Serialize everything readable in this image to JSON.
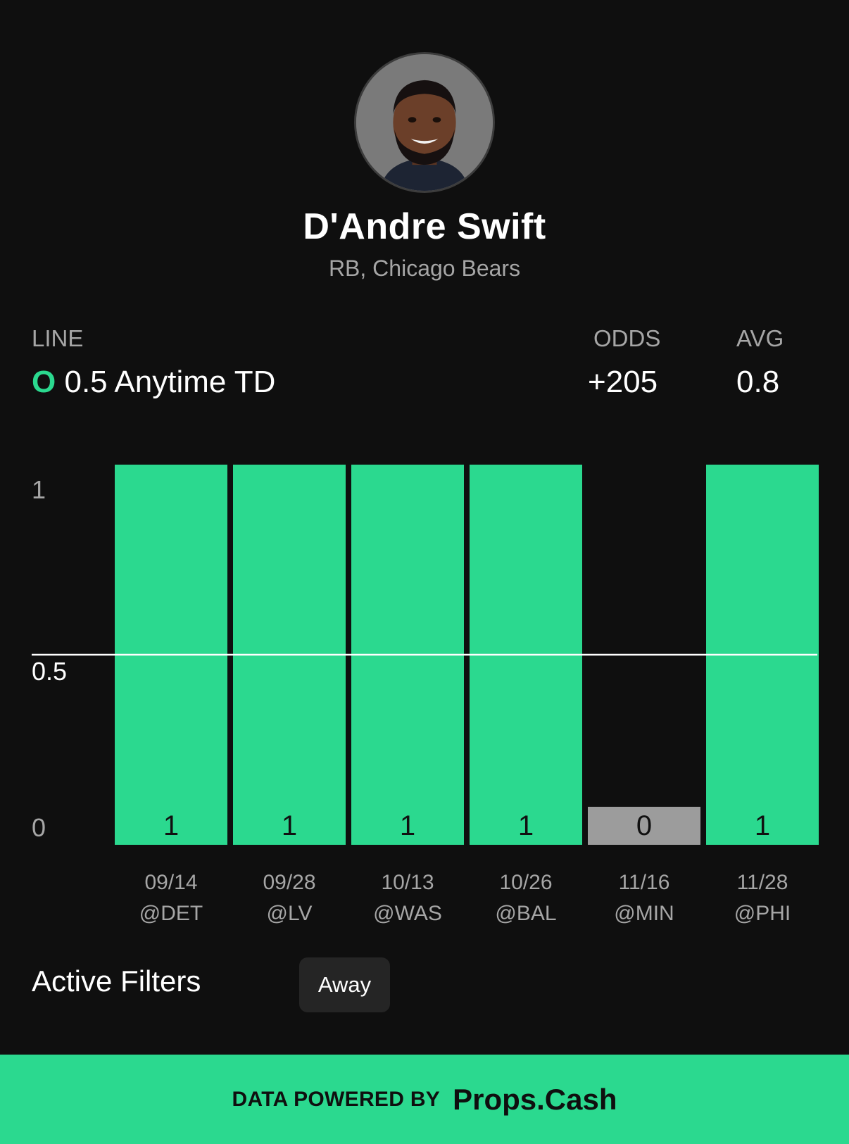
{
  "player": {
    "name": "D'Andre Swift",
    "position_team": "RB, Chicago Bears"
  },
  "line": {
    "line_label": "LINE",
    "odds_label": "ODDS",
    "avg_label": "AVG",
    "side_marker": "O",
    "line_text": "0.5 Anytime TD",
    "odds_value": "+205",
    "avg_value": "0.8"
  },
  "colors": {
    "hit": "#2bd98f",
    "miss": "#9c9c9c",
    "background": "#0f0f0f"
  },
  "chart_data": {
    "type": "bar",
    "categories": [
      "09/14 @DET",
      "09/28 @LV",
      "10/13 @WAS",
      "10/26 @BAL",
      "11/16 @MIN",
      "11/28 @PHI"
    ],
    "dates": [
      "09/14",
      "09/28",
      "10/13",
      "10/26",
      "11/16",
      "11/28"
    ],
    "opponents": [
      "@DET",
      "@LV",
      "@WAS",
      "@BAL",
      "@MIN",
      "@PHI"
    ],
    "values": [
      1,
      1,
      1,
      1,
      0,
      1
    ],
    "line": 0.5,
    "yticks": [
      "1",
      "0.5",
      "0"
    ],
    "ylim": [
      0,
      1
    ],
    "grid": false
  },
  "filters": {
    "title": "Active Filters",
    "chips": [
      "Away"
    ]
  },
  "footer": {
    "prefix": "DATA POWERED BY",
    "brand": "Props.Cash"
  },
  "icons": {
    "avatar": "player-headshot"
  }
}
